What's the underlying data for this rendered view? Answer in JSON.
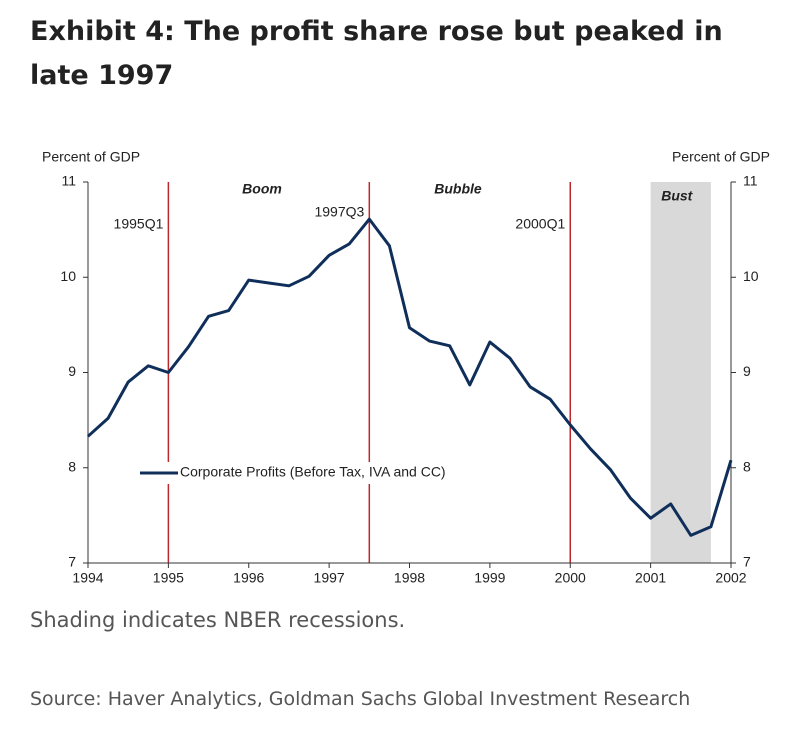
{
  "chart_data": {
    "type": "line",
    "title": "Exhibit 4: The profit share rose but peaked in late 1997",
    "ylabel": "Percent of GDP",
    "y2label": "Percent of GDP",
    "footnote": "Shading indicates NBER recessions.",
    "source": "Source: Haver Analytics, Goldman Sachs Global Investment Research",
    "xlim": [
      1994,
      2002
    ],
    "xticks": [
      1994,
      1995,
      1996,
      1997,
      1998,
      1999,
      2000,
      2001,
      2002
    ],
    "ylim": [
      7,
      11
    ],
    "yticks": [
      7,
      8,
      9,
      10,
      11
    ],
    "y2lim": [
      7,
      11
    ],
    "y2ticks": [
      7,
      8,
      9,
      10,
      11
    ],
    "vlines": [
      {
        "x": 1995,
        "label": "1995Q1"
      },
      {
        "x": 1997.5,
        "label": "1997Q3"
      },
      {
        "x": 2000,
        "label": "2000Q1"
      }
    ],
    "periods": [
      "Boom",
      "Bubble"
    ],
    "recessions": [
      {
        "start": 2001,
        "end": 2001.75,
        "label": "Bust"
      }
    ],
    "x": [
      1994,
      1994.25,
      1994.5,
      1994.75,
      1995,
      1995.25,
      1995.5,
      1995.75,
      1996,
      1996.25,
      1996.5,
      1996.75,
      1997,
      1997.25,
      1997.5,
      1997.75,
      1998,
      1998.25,
      1998.5,
      1998.75,
      1999,
      1999.25,
      1999.5,
      1999.75,
      2000,
      2000.25,
      2000.5,
      2000.75,
      2001,
      2001.25,
      2001.5,
      2001.75,
      2002
    ],
    "series": [
      {
        "name": "Corporate Profits (Before Tax, IVA and CC)",
        "color": "#0f2f5a",
        "values": [
          8.33,
          8.52,
          8.9,
          9.07,
          9.0,
          9.27,
          9.59,
          9.65,
          9.97,
          9.94,
          9.91,
          10.01,
          10.23,
          10.35,
          10.61,
          10.33,
          9.47,
          9.33,
          9.28,
          8.87,
          9.32,
          9.15,
          8.85,
          8.72,
          8.45,
          8.2,
          7.98,
          7.68,
          7.47,
          7.62,
          7.29,
          7.38,
          8.08
        ]
      }
    ]
  }
}
